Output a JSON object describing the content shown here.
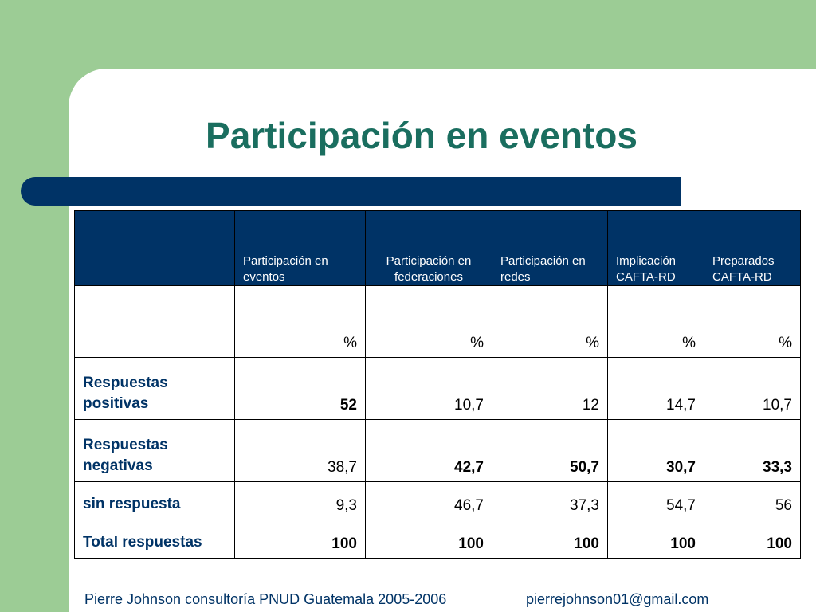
{
  "title": "Participación en eventos",
  "table": {
    "headers": [
      "",
      "Participación en eventos",
      "Participación en federaciones",
      "Participación en redes",
      "Implicación CAFTA-RD",
      "Preparados CAFTA-RD"
    ],
    "units": [
      "",
      "%",
      "%",
      "%",
      "%",
      "%"
    ],
    "rows": [
      {
        "label": "Respuestas positivas",
        "values": [
          "52",
          "10,7",
          "12",
          "14,7",
          "10,7"
        ]
      },
      {
        "label": "Respuestas negativas",
        "values": [
          "38,7",
          "42,7",
          "50,7",
          "30,7",
          "33,3"
        ]
      },
      {
        "label": "sin respuesta",
        "values": [
          "9,3",
          "46,7",
          "37,3",
          "54,7",
          "56"
        ]
      },
      {
        "label": "Total respuestas",
        "values": [
          "100",
          "100",
          "100",
          "100",
          "100"
        ]
      }
    ]
  },
  "footer": {
    "credit": "Pierre Johnson consultoría PNUD Guatemala 2005-2006",
    "email": "pierrejohnson01@gmail.com"
  },
  "colors": {
    "background_green": "#9ccc95",
    "navy": "#003366",
    "title_teal": "#1a6e5f"
  }
}
